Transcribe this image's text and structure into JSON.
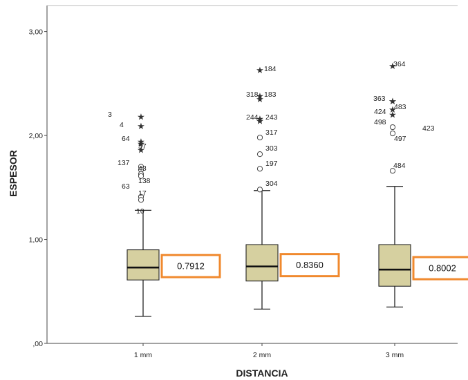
{
  "chart_data": {
    "type": "boxplot",
    "xlabel": "DISTANCIA",
    "ylabel": "ESPESOR",
    "ylim": [
      0,
      3.25
    ],
    "yticks": [
      {
        "value": 0,
        "label": ",00"
      },
      {
        "value": 1,
        "label": "1,00"
      },
      {
        "value": 2,
        "label": "2,00"
      },
      {
        "value": 3,
        "label": "3,00"
      }
    ],
    "categories": [
      "1 mm",
      "2 mm",
      "3 mm"
    ],
    "boxes": [
      {
        "category": "1 mm",
        "whisker_low": 0.26,
        "q1": 0.61,
        "median": 0.73,
        "q3": 0.9,
        "whisker_high": 1.28,
        "callout": "0.7912",
        "outliers": [
          {
            "id": "3",
            "value": 2.18,
            "kind": "extreme"
          },
          {
            "id": "4",
            "value": 2.09,
            "kind": "extreme"
          },
          {
            "id": "64",
            "value": 1.94,
            "kind": "extreme"
          },
          {
            "id": "57",
            "value": 1.92,
            "kind": "extreme"
          },
          {
            "id": "137",
            "value": 1.86,
            "kind": "extreme"
          },
          {
            "id": "43",
            "value": 1.7,
            "kind": "outlier"
          },
          {
            "id": "",
            "value": 1.67,
            "kind": "outlier"
          },
          {
            "id": "138",
            "value": 1.63,
            "kind": "outlier"
          },
          {
            "id": "63",
            "value": 1.61,
            "kind": "outlier"
          },
          {
            "id": "17",
            "value": 1.41,
            "kind": "outlier"
          },
          {
            "id": "10",
            "value": 1.38,
            "kind": "outlier"
          }
        ]
      },
      {
        "category": "2 mm",
        "whisker_low": 0.33,
        "q1": 0.6,
        "median": 0.74,
        "q3": 0.95,
        "whisker_high": 1.47,
        "callout": "0.8360",
        "outliers": [
          {
            "id": "184",
            "value": 2.63,
            "kind": "extreme"
          },
          {
            "id": "318",
            "value": 2.38,
            "kind": "extreme"
          },
          {
            "id": "183",
            "value": 2.35,
            "kind": "extreme"
          },
          {
            "id": "244",
            "value": 2.16,
            "kind": "extreme"
          },
          {
            "id": "243",
            "value": 2.14,
            "kind": "extreme"
          },
          {
            "id": "317",
            "value": 2.14,
            "kind": "extreme"
          },
          {
            "id": "303",
            "value": 1.98,
            "kind": "outlier"
          },
          {
            "id": "197",
            "value": 1.82,
            "kind": "outlier"
          },
          {
            "id": "",
            "value": 1.68,
            "kind": "outlier"
          },
          {
            "id": "304",
            "value": 1.48,
            "kind": "outlier"
          }
        ]
      },
      {
        "category": "3 mm",
        "whisker_low": 0.35,
        "q1": 0.55,
        "median": 0.71,
        "q3": 0.95,
        "whisker_high": 1.51,
        "callout": "0.8002",
        "outliers": [
          {
            "id": "364",
            "value": 2.67,
            "kind": "extreme"
          },
          {
            "id": "363",
            "value": 2.33,
            "kind": "extreme"
          },
          {
            "id": "483",
            "value": 2.33,
            "kind": "extreme"
          },
          {
            "id": "424",
            "value": 2.25,
            "kind": "extreme"
          },
          {
            "id": "498",
            "value": 2.2,
            "kind": "extreme"
          },
          {
            "id": "423",
            "value": 2.08,
            "kind": "outlier"
          },
          {
            "id": "497",
            "value": 2.02,
            "kind": "outlier"
          },
          {
            "id": "484",
            "value": 1.66,
            "kind": "outlier"
          }
        ]
      }
    ],
    "colors": {
      "box_fill": "#D6D0A0",
      "callout_border": "#F0892E",
      "line": "#222222"
    }
  }
}
